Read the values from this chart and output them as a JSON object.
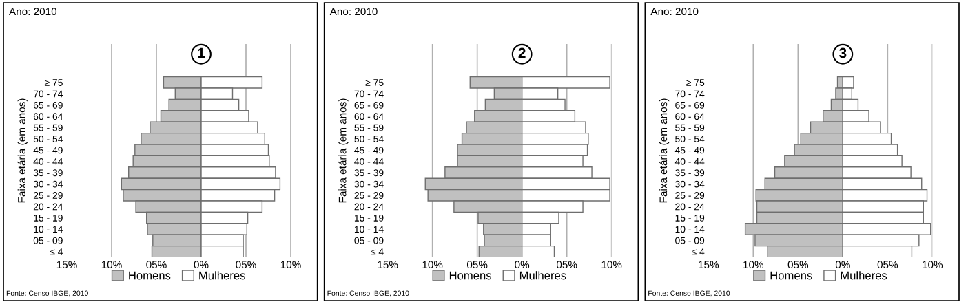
{
  "chart_data": [
    {
      "type": "bar",
      "orientation": "horizontal",
      "stacked": true,
      "title": "Ano: 2010",
      "subtitle": "1",
      "ylabel": "Faixa etária (em anos)",
      "legend": "bottom",
      "grid": "x",
      "categories": [
        "≥ 75",
        "70 - 74",
        "65 - 69",
        "60 - 64",
        "55 - 59",
        "50 - 54",
        "45 - 49",
        "40 - 44",
        "35 - 39",
        "30 - 34",
        "25 - 29",
        "20 - 24",
        "15 - 19",
        "10 - 14",
        "05 - 09",
        "≤ 4"
      ],
      "xlim": [
        -15,
        10
      ],
      "xticks": [
        {
          "value": -15,
          "label": "15%"
        },
        {
          "value": -10,
          "label": "10%"
        },
        {
          "value": -5,
          "label": "05%"
        },
        {
          "value": 0,
          "label": "0%"
        },
        {
          "value": 5,
          "label": "05%"
        },
        {
          "value": 10,
          "label": "10%"
        }
      ],
      "series": [
        {
          "name": "Homens",
          "color": "#c0c0c0",
          "values": [
            -4.2,
            -2.9,
            -3.6,
            -4.5,
            -5.7,
            -6.7,
            -7.4,
            -7.6,
            -8.1,
            -8.9,
            -8.7,
            -7.3,
            -6.1,
            -6.0,
            -5.4,
            -5.5
          ]
        },
        {
          "name": "Mulheres",
          "color": "#ffffff",
          "values": [
            6.8,
            3.5,
            4.2,
            5.3,
            6.3,
            7.1,
            7.5,
            7.6,
            8.3,
            8.8,
            8.2,
            6.8,
            5.2,
            5.1,
            4.7,
            4.7
          ]
        }
      ],
      "annotations": [
        "Fonte: Censo IBGE, 2010"
      ]
    },
    {
      "type": "bar",
      "orientation": "horizontal",
      "stacked": true,
      "title": "Ano: 2010",
      "subtitle": "2",
      "ylabel": "Faixa etária (em anos)",
      "legend": "bottom",
      "grid": "x",
      "categories": [
        "≥ 75",
        "70 - 74",
        "65 - 69",
        "60 - 64",
        "55 - 59",
        "50 - 54",
        "45 - 49",
        "40 - 44",
        "35 - 39",
        "30 - 34",
        "25 - 29",
        "20 - 24",
        "15 - 19",
        "10 - 14",
        "05 - 09",
        "≤ 4"
      ],
      "xlim": [
        -15,
        10
      ],
      "xticks": [
        {
          "value": -15,
          "label": "15%"
        },
        {
          "value": -10,
          "label": "10%"
        },
        {
          "value": -5,
          "label": "05%"
        },
        {
          "value": 0,
          "label": "0%"
        },
        {
          "value": 5,
          "label": "05%"
        },
        {
          "value": 10,
          "label": "10%"
        }
      ],
      "series": [
        {
          "name": "Homens",
          "color": "#c0c0c0",
          "values": [
            -5.8,
            -3.1,
            -4.1,
            -5.3,
            -6.2,
            -6.7,
            -7.2,
            -7.2,
            -8.6,
            -10.8,
            -10.5,
            -7.6,
            -4.9,
            -4.3,
            -4.2,
            -4.8
          ]
        },
        {
          "name": "Mulheres",
          "color": "#ffffff",
          "values": [
            9.8,
            4.0,
            4.8,
            5.9,
            7.1,
            7.4,
            7.3,
            6.8,
            7.8,
            9.8,
            9.8,
            6.8,
            4.1,
            3.2,
            3.2,
            3.6
          ]
        }
      ],
      "annotations": [
        "Fonte: Censo IBGE, 2010"
      ]
    },
    {
      "type": "bar",
      "orientation": "horizontal",
      "stacked": true,
      "title": "Ano: 2010",
      "subtitle": "3",
      "ylabel": "Faixa etária (em anos)",
      "legend": "bottom",
      "grid": "x",
      "categories": [
        "≥ 75",
        "70 - 74",
        "65 - 69",
        "60 - 64",
        "55 - 59",
        "50 - 54",
        "45 - 49",
        "40 - 44",
        "35 - 39",
        "30 - 34",
        "25 - 29",
        "20 - 24",
        "15 - 19",
        "10 - 14",
        "05 - 09",
        "≤ 4"
      ],
      "xlim": [
        -15,
        10
      ],
      "xticks": [
        {
          "value": -15,
          "label": "15%"
        },
        {
          "value": -10,
          "label": "10%"
        },
        {
          "value": -5,
          "label": "05%"
        },
        {
          "value": 0,
          "label": "0%"
        },
        {
          "value": 5,
          "label": "05%"
        },
        {
          "value": 10,
          "label": "10%"
        }
      ],
      "series": [
        {
          "name": "Homens",
          "color": "#c0c0c0",
          "values": [
            -0.6,
            -0.8,
            -1.3,
            -2.2,
            -3.6,
            -4.7,
            -5.4,
            -6.5,
            -7.6,
            -8.7,
            -9.7,
            -9.6,
            -9.6,
            -10.9,
            -9.8,
            -8.4
          ]
        },
        {
          "name": "Mulheres",
          "color": "#ffffff",
          "values": [
            1.2,
            1.0,
            1.7,
            2.9,
            4.2,
            5.4,
            6.1,
            6.6,
            7.6,
            8.8,
            9.4,
            9.0,
            9.0,
            9.8,
            8.5,
            7.7
          ]
        }
      ],
      "annotations": [
        "Fonte: Censo IBGE, 2010"
      ]
    }
  ]
}
